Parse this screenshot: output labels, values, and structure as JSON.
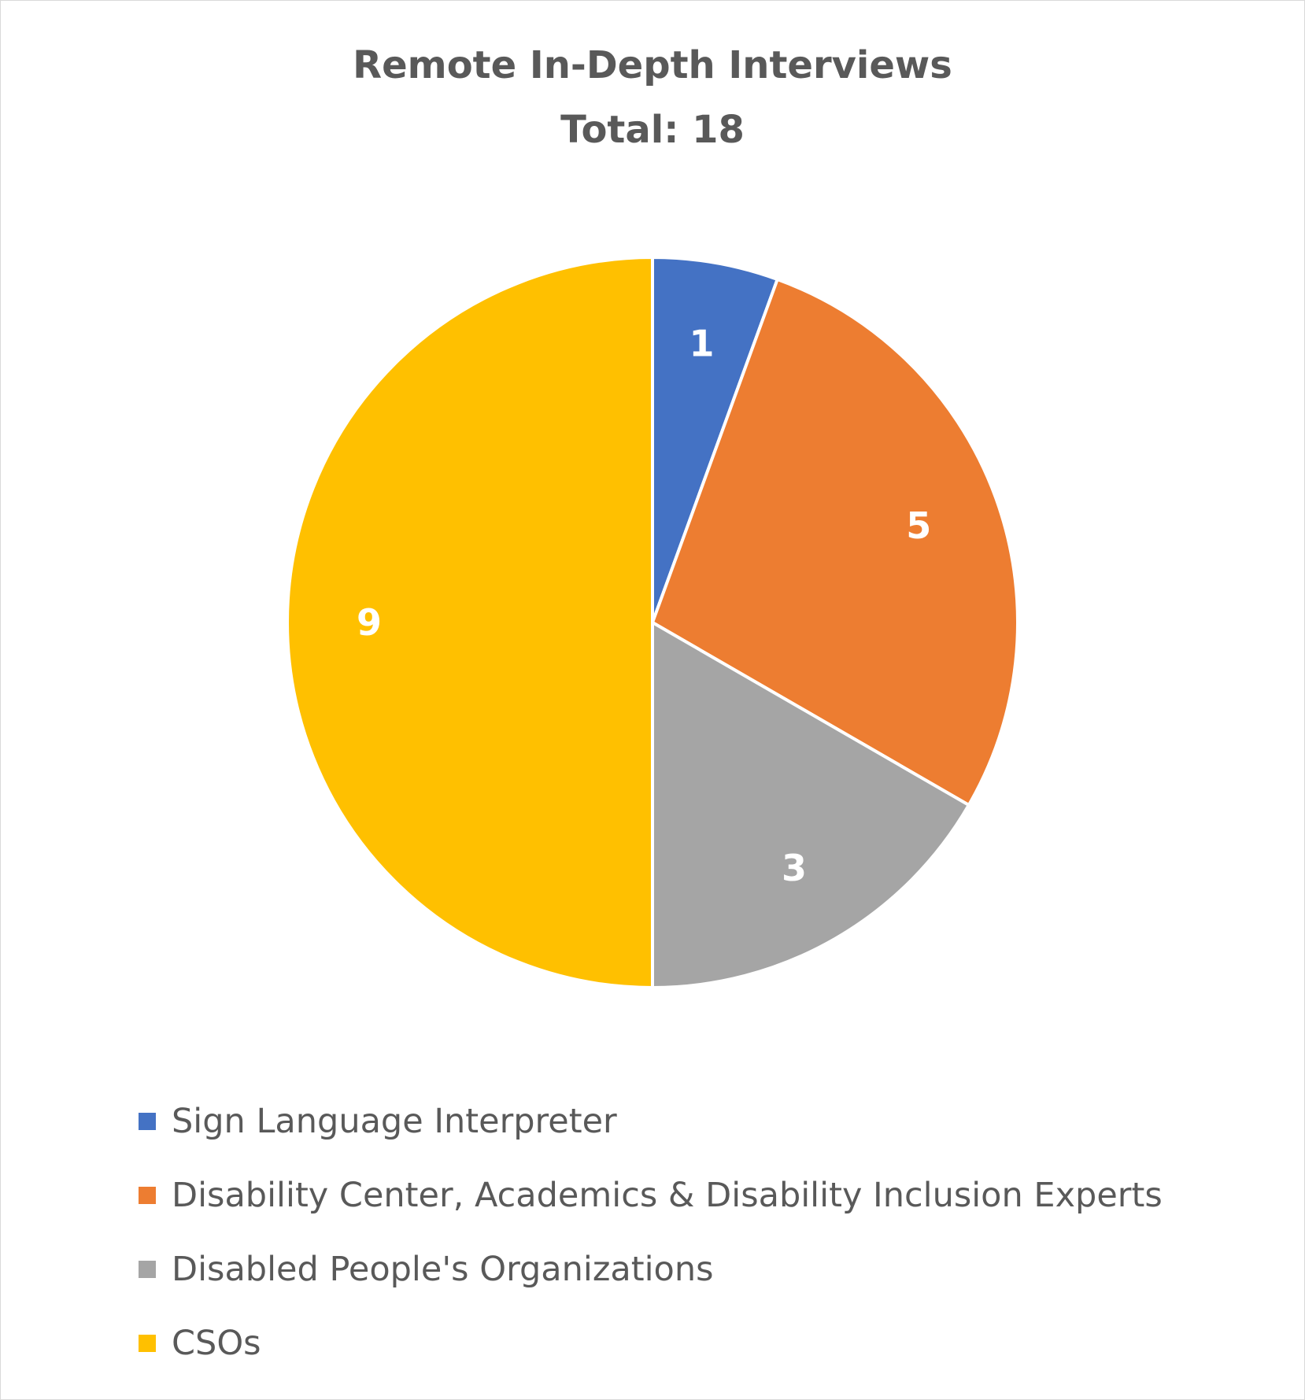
{
  "chart_data": {
    "type": "pie",
    "title": "Remote In-Depth Interviews",
    "subtitle": "Total: 18",
    "categories": [
      "Sign Language Interpreter",
      "Disability Center, Academics & Disability Inclusion Experts",
      "Disabled People's Organizations",
      "CSOs"
    ],
    "values": [
      1,
      5,
      3,
      9
    ],
    "data_labels": [
      "1",
      "5",
      "3",
      "9"
    ],
    "colors": [
      "#4472c4",
      "#ed7d31",
      "#a5a5a5",
      "#ffc000"
    ],
    "legend_position": "bottom-left",
    "start_angle": "12 o'clock, clockwise"
  }
}
